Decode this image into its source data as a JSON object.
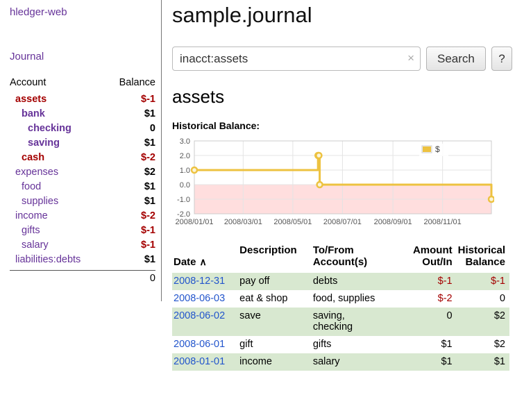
{
  "app_title": "hledger-web",
  "sidebar": {
    "journal_link": "Journal",
    "columns": {
      "account": "Account",
      "balance": "Balance"
    },
    "accounts": [
      {
        "name": "assets",
        "balance": "$-1"
      },
      {
        "name": "bank",
        "balance": "$1"
      },
      {
        "name": "checking",
        "balance": "0"
      },
      {
        "name": "saving",
        "balance": "$1"
      },
      {
        "name": "cash",
        "balance": "$-2"
      },
      {
        "name": "expenses",
        "balance": "$2"
      },
      {
        "name": "food",
        "balance": "$1"
      },
      {
        "name": "supplies",
        "balance": "$1"
      },
      {
        "name": "income",
        "balance": "$-2"
      },
      {
        "name": "gifts",
        "balance": "$-1"
      },
      {
        "name": "salary",
        "balance": "$-1"
      },
      {
        "name": "liabilities:debts",
        "balance": "$1"
      }
    ],
    "total": "0"
  },
  "main": {
    "title": "sample.journal",
    "search": {
      "value": "inacct:assets",
      "clear_icon": "×",
      "search_button": "Search",
      "help_button": "?"
    },
    "account_heading": "assets",
    "chart_title": "Historical Balance:",
    "register": {
      "headers": {
        "date": "Date",
        "sort_indicator": "∧",
        "description": "Description",
        "accounts": "To/From\nAccount(s)",
        "amount": "Amount\nOut/In",
        "balance": "Historical\nBalance"
      },
      "rows": [
        {
          "date": "2008-12-31",
          "description": "pay off",
          "accounts": "debts",
          "amount": "$-1",
          "balance": "$-1"
        },
        {
          "date": "2008-06-03",
          "description": "eat & shop",
          "accounts": "food, supplies",
          "amount": "$-2",
          "balance": "0"
        },
        {
          "date": "2008-06-02",
          "description": "save",
          "accounts": "saving,\nchecking",
          "amount": "0",
          "balance": "$2"
        },
        {
          "date": "2008-06-01",
          "description": "gift",
          "accounts": "gifts",
          "amount": "$1",
          "balance": "$2"
        },
        {
          "date": "2008-01-01",
          "description": "income",
          "accounts": "salary",
          "amount": "$1",
          "balance": "$1"
        }
      ]
    }
  },
  "colors": {
    "link_purple": "#663399",
    "negative_red": "#a40000",
    "date_blue": "#2255cc",
    "row_green": "#d8e8d0",
    "series_gold": "#edc240"
  },
  "chart_data": {
    "type": "line",
    "title": "Historical Balance",
    "step": true,
    "series": [
      {
        "name": "$",
        "color": "#edc240",
        "points": [
          [
            "2008-01-01",
            1
          ],
          [
            "2008-06-01",
            2
          ],
          [
            "2008-06-02",
            2
          ],
          [
            "2008-06-03",
            0
          ],
          [
            "2008-12-31",
            -1
          ]
        ]
      }
    ],
    "x_ticks": [
      "2008/01/01",
      "2008/03/01",
      "2008/05/01",
      "2008/07/01",
      "2008/09/01",
      "2008/11/01"
    ],
    "y_ticks": [
      3.0,
      2.0,
      1.0,
      0.0,
      -1.0,
      -2.0
    ],
    "ylim": [
      -2,
      3
    ],
    "negative_region_fill": "rgba(255,0,0,0.13)",
    "legend": {
      "label": "$",
      "position": "top-right"
    }
  }
}
